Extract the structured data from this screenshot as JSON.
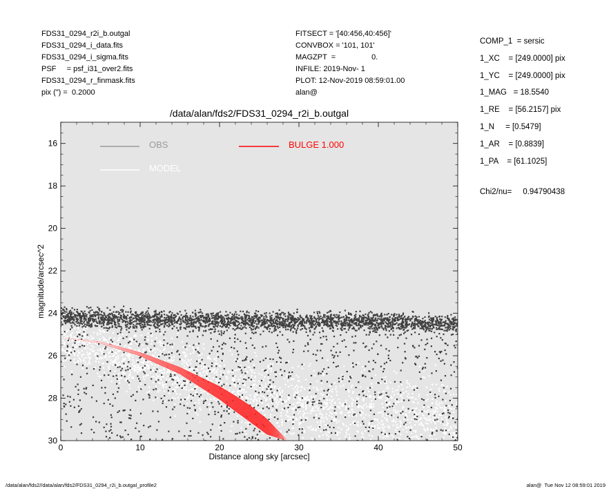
{
  "header_left": [
    "FDS31_0294_r2i_b.outgal",
    "FDS31_0294_i_data.fits",
    "FDS31_0294_i_sigma.fits",
    "PSF     = psf_i31_over2.fits",
    "FDS31_0294_r_finmask.fits",
    "pix (\") =  0.2000"
  ],
  "header_mid": [
    "FITSECT = '[40:456,40:456]'",
    "CONVBOX = '101, 101'",
    "MAGZPT  =                 0.",
    "INFILE: 2019-Nov- 1",
    "PLOT: 12-Nov-2019 08:59:01.00",
    "alan@"
  ],
  "header_right": [
    "COMP_1  = sersic",
    "1_XC    = [249.0000] pix",
    "1_YC    = [249.0000] pix",
    "1_MAG   = 18.5540",
    "1_RE    = [56.2157] pix",
    "1_N     = [0.5479]",
    "1_AR    = [0.8839]",
    "1_PA    = [61.1025]"
  ],
  "chi2_text": "Chi2/nu=     0.94790438",
  "footer_left": "/data/alan/fds2//data/alan/fds2/FDS31_0294_r2i_b.outgal_profile2",
  "footer_right": "alan@  Tue Nov 12 08:59:01 2019",
  "chart_data": {
    "type": "scatter",
    "title": "/data/alan/fds2/FDS31_0294_r2i_b.outgal",
    "xlabel": "Distance along sky [arcsec]",
    "ylabel": "magnitude/arcsec^2",
    "xlim": [
      0,
      50
    ],
    "ylim": [
      30,
      15
    ],
    "xticks": [
      "0",
      "10",
      "20",
      "30",
      "40",
      "50"
    ],
    "yticks": [
      "16",
      "18",
      "20",
      "22",
      "24",
      "26",
      "28",
      "30"
    ],
    "background": "#e5e5e5",
    "legend": [
      {
        "label": "OBS",
        "color": "#9a9a9a"
      },
      {
        "label": "MODEL",
        "color": "#ffffff"
      },
      {
        "label": "BULGE  1.000",
        "color": "#ff0000"
      }
    ],
    "series": [
      {
        "name": "OBS",
        "color": "#404040",
        "points_approx": [
          [
            0,
            24.2
          ],
          [
            10,
            24.3
          ],
          [
            20,
            24.4
          ],
          [
            30,
            24.4
          ],
          [
            40,
            24.4
          ],
          [
            50,
            24.5
          ]
        ],
        "scatter_range": [
          23.9,
          30
        ]
      },
      {
        "name": "MODEL",
        "color": "#ffffff",
        "points_approx": [
          [
            0,
            25.2
          ],
          [
            10,
            26.2
          ],
          [
            20,
            27.4
          ],
          [
            30,
            28.4
          ],
          [
            40,
            29.0
          ],
          [
            50,
            29.4
          ]
        ]
      },
      {
        "name": "BULGE  1.000",
        "color": "#ff0000",
        "x": [
          0,
          5,
          10,
          15,
          20,
          22,
          24,
          26,
          28.5
        ],
        "y_upper": [
          25.15,
          25.35,
          25.85,
          26.55,
          27.45,
          27.9,
          28.4,
          29.0,
          30.0
        ],
        "y_lower": [
          25.15,
          25.4,
          26.0,
          26.85,
          28.05,
          28.6,
          29.15,
          29.7,
          30.0
        ]
      }
    ]
  }
}
